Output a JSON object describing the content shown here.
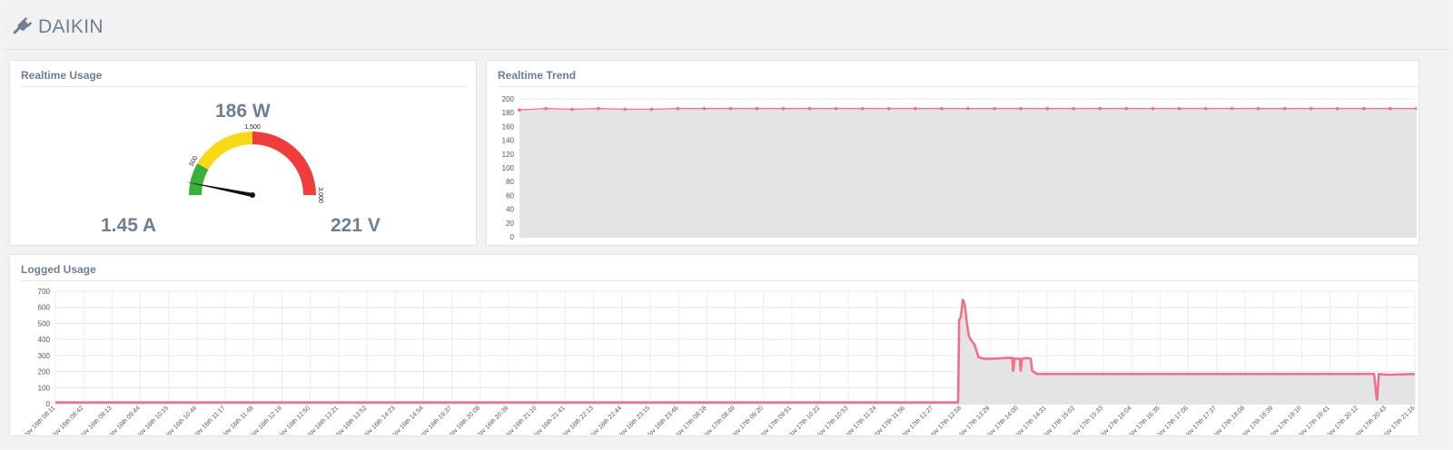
{
  "header": {
    "title": "DAIKIN",
    "icon": "plug-icon"
  },
  "realtime_usage": {
    "title": "Realtime Usage",
    "power": "186 W",
    "current": "1.45 A",
    "voltage": "221 V",
    "gauge": {
      "min": 0,
      "max": 3000,
      "value": 186,
      "tick_labels": [
        "500",
        "1,500",
        "3,000"
      ],
      "bands": [
        {
          "from": 0,
          "to": 500,
          "color": "#3ab03a"
        },
        {
          "from": 500,
          "to": 1500,
          "color": "#f7d917"
        },
        {
          "from": 1500,
          "to": 3000,
          "color": "#ef3c3c"
        }
      ]
    }
  },
  "realtime_trend": {
    "title": "Realtime Trend",
    "chart_data": {
      "type": "area",
      "ylim": [
        0,
        200
      ],
      "yticks": [
        "0",
        "20",
        "40",
        "60",
        "80",
        "100",
        "120",
        "140",
        "160",
        "180",
        "200"
      ],
      "values": [
        184,
        186,
        185,
        186,
        185,
        185,
        186,
        186,
        186,
        186,
        186,
        186,
        186,
        186,
        186,
        186,
        186,
        186,
        186,
        186,
        186,
        186,
        186,
        186,
        186,
        186,
        186,
        186,
        186,
        186,
        186,
        186,
        186,
        186,
        186
      ],
      "color": "#f0708a"
    }
  },
  "logged_usage": {
    "title": "Logged Usage",
    "chart_data": {
      "type": "area",
      "ylim": [
        0,
        700
      ],
      "yticks": [
        "0",
        "100",
        "200",
        "300",
        "400",
        "500",
        "600",
        "700"
      ],
      "color": "#f0708a",
      "categories": [
        "Nov 16th 08:11",
        "Nov 16th 08:42",
        "Nov 16th 09:13",
        "Nov 16th 09:44",
        "Nov 16th 10:15",
        "Nov 16th 10:46",
        "Nov 16th 11:17",
        "Nov 16th 11:48",
        "Nov 16th 12:19",
        "Nov 16th 12:50",
        "Nov 16th 13:21",
        "Nov 16th 13:52",
        "Nov 16th 14:23",
        "Nov 16th 14:54",
        "Nov 16th 19:37",
        "Nov 16th 20:08",
        "Nov 16th 20:39",
        "Nov 16th 21:10",
        "Nov 16th 21:41",
        "Nov 16th 22:13",
        "Nov 16th 22:44",
        "Nov 16th 23:15",
        "Nov 16th 23:46",
        "Nov 17th 08:18",
        "Nov 17th 08:49",
        "Nov 17th 09:20",
        "Nov 17th 09:51",
        "Nov 17th 10:22",
        "Nov 17th 10:53",
        "Nov 17th 11:24",
        "Nov 17th 11:56",
        "Nov 17th 12:27",
        "Nov 17th 12:58",
        "Nov 17th 13:29",
        "Nov 17th 14:00",
        "Nov 17th 14:31",
        "Nov 17th 15:02",
        "Nov 17th 15:33",
        "Nov 17th 16:04",
        "Nov 17th 16:35",
        "Nov 17th 17:06",
        "Nov 17th 17:37",
        "Nov 17th 18:08",
        "Nov 17th 18:39",
        "Nov 17th 19:10",
        "Nov 17th 19:41",
        "Nov 17th 20:12",
        "Nov 17th 20:43",
        "Nov 17th 21:16"
      ],
      "series_points": [
        [
          0,
          8
        ],
        [
          0.664,
          8
        ],
        [
          0.6648,
          520
        ],
        [
          0.666,
          540
        ],
        [
          0.6675,
          650
        ],
        [
          0.669,
          610
        ],
        [
          0.6705,
          500
        ],
        [
          0.672,
          420
        ],
        [
          0.674,
          390
        ],
        [
          0.676,
          370
        ],
        [
          0.679,
          290
        ],
        [
          0.683,
          280
        ],
        [
          0.69,
          280
        ],
        [
          0.7,
          285
        ],
        [
          0.704,
          285
        ],
        [
          0.7045,
          200
        ],
        [
          0.7055,
          280
        ],
        [
          0.7095,
          280
        ],
        [
          0.71,
          200
        ],
        [
          0.711,
          280
        ],
        [
          0.715,
          285
        ],
        [
          0.7175,
          280
        ],
        [
          0.7185,
          205
        ],
        [
          0.722,
          185
        ],
        [
          0.75,
          185
        ],
        [
          0.8,
          185
        ],
        [
          0.85,
          185
        ],
        [
          0.9,
          185
        ],
        [
          0.96,
          185
        ],
        [
          0.97,
          185
        ],
        [
          0.9712,
          90
        ],
        [
          0.9722,
          20
        ],
        [
          0.9735,
          185
        ],
        [
          0.98,
          180
        ],
        [
          1.0,
          185
        ]
      ]
    }
  }
}
